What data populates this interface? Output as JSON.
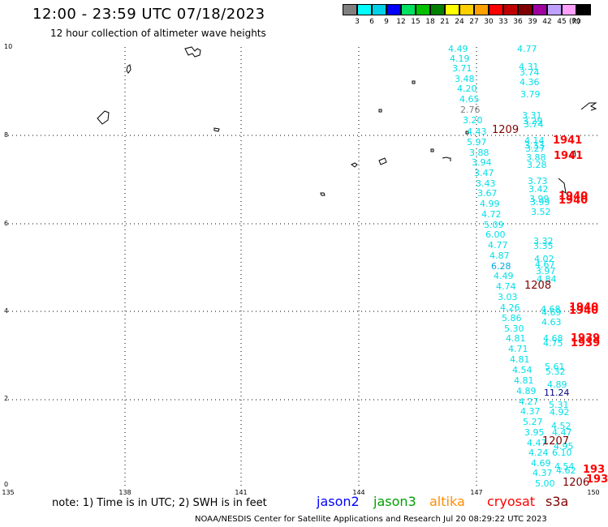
{
  "title": "12:00 - 23:59 UTC 07/18/2023",
  "subtitle": "12 hour collection of altimeter wave heights",
  "colorbar": {
    "unit": "(ft)",
    "colors": [
      "#808080",
      "#00ffff",
      "#00d0e8",
      "#0000ff",
      "#00e060",
      "#00c000",
      "#008000",
      "#ffff00",
      "#ffd000",
      "#ffa000",
      "#ff0000",
      "#c00000",
      "#800000",
      "#a000a0",
      "#c0a0ff",
      "#ffa0ff",
      "#000000"
    ],
    "labels": [
      "3",
      "6",
      "9",
      "12",
      "15",
      "18",
      "21",
      "24",
      "27",
      "30",
      "33",
      "36",
      "39",
      "42",
      "45",
      "70"
    ]
  },
  "axes": {
    "y_ticks": [
      "10",
      "8",
      "6",
      "4",
      "2",
      "0"
    ],
    "x_ticks": [
      "135",
      "138",
      "141",
      "144",
      "147",
      "150"
    ]
  },
  "wave_heights": [
    {
      "t": "4.49",
      "c": "#00e0e8"
    },
    {
      "t": "4.19",
      "c": "#00e0e8"
    },
    {
      "t": "3.71",
      "c": "#00e0e8"
    },
    {
      "t": "3.48",
      "c": "#00e0e8"
    },
    {
      "t": "4.20",
      "c": "#00e0e8"
    },
    {
      "t": "4.65",
      "c": "#00e0e8"
    },
    {
      "t": "2.76",
      "c": "#808080"
    },
    {
      "t": "3.20",
      "c": "#00e0e8"
    },
    {
      "t": "4.43",
      "c": "#00e0e8"
    },
    {
      "t": "5.97",
      "c": "#00e0e8"
    },
    {
      "t": "3.88",
      "c": "#00e0e8"
    },
    {
      "t": "3.94",
      "c": "#00e0e8"
    },
    {
      "t": "3.47",
      "c": "#00e0e8"
    },
    {
      "t": "3.43",
      "c": "#00e0e8"
    },
    {
      "t": "3.67",
      "c": "#00e0e8"
    },
    {
      "t": "4.99",
      "c": "#00e0e8"
    },
    {
      "t": "4.72",
      "c": "#00e0e8"
    },
    {
      "t": "5.09",
      "c": "#00e0e8"
    },
    {
      "t": "6.00",
      "c": "#00e0e8"
    },
    {
      "t": "4.77",
      "c": "#00e0e8"
    },
    {
      "t": "4.87",
      "c": "#00e0e8"
    },
    {
      "t": "6.28",
      "c": "#00a8e0"
    },
    {
      "t": "4.49",
      "c": "#00e0e8"
    },
    {
      "t": "4.74",
      "c": "#00e0e8"
    },
    {
      "t": "3.03",
      "c": "#00e0e8"
    },
    {
      "t": "4.26",
      "c": "#00e0e8"
    },
    {
      "t": "5.86",
      "c": "#00e0e8"
    },
    {
      "t": "5.30",
      "c": "#00e0e8"
    },
    {
      "t": "4.81",
      "c": "#00e0e8"
    },
    {
      "t": "4.71",
      "c": "#00e0e8"
    },
    {
      "t": "4.81",
      "c": "#00e0e8"
    },
    {
      "t": "4.54",
      "c": "#00e0e8"
    },
    {
      "t": "4.81",
      "c": "#00e0e8"
    },
    {
      "t": "4.89",
      "c": "#00e0e8"
    },
    {
      "t": "4.27",
      "c": "#00e0e8"
    },
    {
      "t": "4.37",
      "c": "#00e0e8"
    },
    {
      "t": "5.27",
      "c": "#00e0e8"
    },
    {
      "t": "3.95",
      "c": "#00e0e8"
    },
    {
      "t": "4.47",
      "c": "#00e0e8"
    },
    {
      "t": "4.24",
      "c": "#00e0e8"
    },
    {
      "t": "4.69",
      "c": "#00e0e8"
    },
    {
      "t": "4.37",
      "c": "#00e0e8"
    },
    {
      "t": "5.00",
      "c": "#00e0e8"
    },
    {
      "t": "4.77",
      "c": "#00e0e8"
    },
    {
      "t": "4.31",
      "c": "#00e0e8"
    },
    {
      "t": "3.74",
      "c": "#00e0e8"
    },
    {
      "t": "4.36",
      "c": "#00e0e8"
    },
    {
      "t": "3.79",
      "c": "#00e0e8"
    },
    {
      "t": "3.31",
      "c": "#00e0e8"
    },
    {
      "t": "3.29",
      "c": "#00e0e8"
    },
    {
      "t": "3.74",
      "c": "#00e0e8"
    },
    {
      "t": "4.14",
      "c": "#00e0e8"
    },
    {
      "t": "3.33",
      "c": "#00e0e8"
    },
    {
      "t": "3.27",
      "c": "#00e0e8"
    },
    {
      "t": "3.88",
      "c": "#00e0e8"
    },
    {
      "t": "3.28",
      "c": "#00e0e8"
    },
    {
      "t": "3.73",
      "c": "#00e0e8"
    },
    {
      "t": "3.42",
      "c": "#00e0e8"
    },
    {
      "t": "3.99",
      "c": "#00e0e8"
    },
    {
      "t": "3.99",
      "c": "#00e0e8"
    },
    {
      "t": "3.52",
      "c": "#00e0e8"
    },
    {
      "t": "3.32",
      "c": "#00e0e8"
    },
    {
      "t": "3.35",
      "c": "#00e0e8"
    },
    {
      "t": "4.02",
      "c": "#00e0e8"
    },
    {
      "t": "4.67",
      "c": "#00e0e8"
    },
    {
      "t": "3.97",
      "c": "#00e0e8"
    },
    {
      "t": "4.84",
      "c": "#00e0e8"
    },
    {
      "t": "4.68",
      "c": "#00e0e8"
    },
    {
      "t": "4.69",
      "c": "#00e0e8"
    },
    {
      "t": "4.63",
      "c": "#00e0e8"
    },
    {
      "t": "4.68",
      "c": "#00e0e8"
    },
    {
      "t": "4.75",
      "c": "#00e0e8"
    },
    {
      "t": "5.61",
      "c": "#00e0e8"
    },
    {
      "t": "5.32",
      "c": "#00e0e8"
    },
    {
      "t": "4.89",
      "c": "#00e0e8"
    },
    {
      "t": "11.24",
      "c": "#000080"
    },
    {
      "t": "5.31",
      "c": "#00e0e8"
    },
    {
      "t": "4.92",
      "c": "#00e0e8"
    },
    {
      "t": "4.52",
      "c": "#00e0e8"
    },
    {
      "t": "4.47",
      "c": "#00e0e8"
    },
    {
      "t": "6.10",
      "c": "#00e0e8"
    },
    {
      "t": "4.95",
      "c": "#00e0e8"
    },
    {
      "t": "4.54",
      "c": "#00e0e8"
    },
    {
      "t": "4.62",
      "c": "#00e0e8"
    },
    {
      "t": "1209",
      "c": "#800000"
    },
    {
      "t": "1941",
      "c": "#ff0000"
    },
    {
      "t": "1941",
      "c": "#ff0000"
    },
    {
      "t": "1940",
      "c": "#ff0000"
    },
    {
      "t": "1940",
      "c": "#ff0000"
    },
    {
      "t": "1208",
      "c": "#800000"
    },
    {
      "t": "1940",
      "c": "#ff0000"
    },
    {
      "t": "1940",
      "c": "#ff0000"
    },
    {
      "t": "1939",
      "c": "#ff0000"
    },
    {
      "t": "1939",
      "c": "#ff0000"
    },
    {
      "t": "1207",
      "c": "#800000"
    },
    {
      "t": "1206",
      "c": "#800000"
    },
    {
      "t": "193",
      "c": "#ff0000"
    },
    {
      "t": "193",
      "c": "#ff0000"
    }
  ],
  "footnote": "note: 1) Time is in UTC; 2) SWH is in feet",
  "legend": [
    {
      "name": "jason2",
      "color": "#0000ff"
    },
    {
      "name": "jason3",
      "color": "#00a000"
    },
    {
      "name": "altika",
      "color": "#ff8c00"
    },
    {
      "name": "cryosat",
      "color": "#ff0000"
    },
    {
      "name": "s3a",
      "color": "#800000"
    }
  ],
  "credit": "NOAA/NESDIS Center for Satellite Applications and Research    Jul 20 08:29:22 UTC 2023"
}
